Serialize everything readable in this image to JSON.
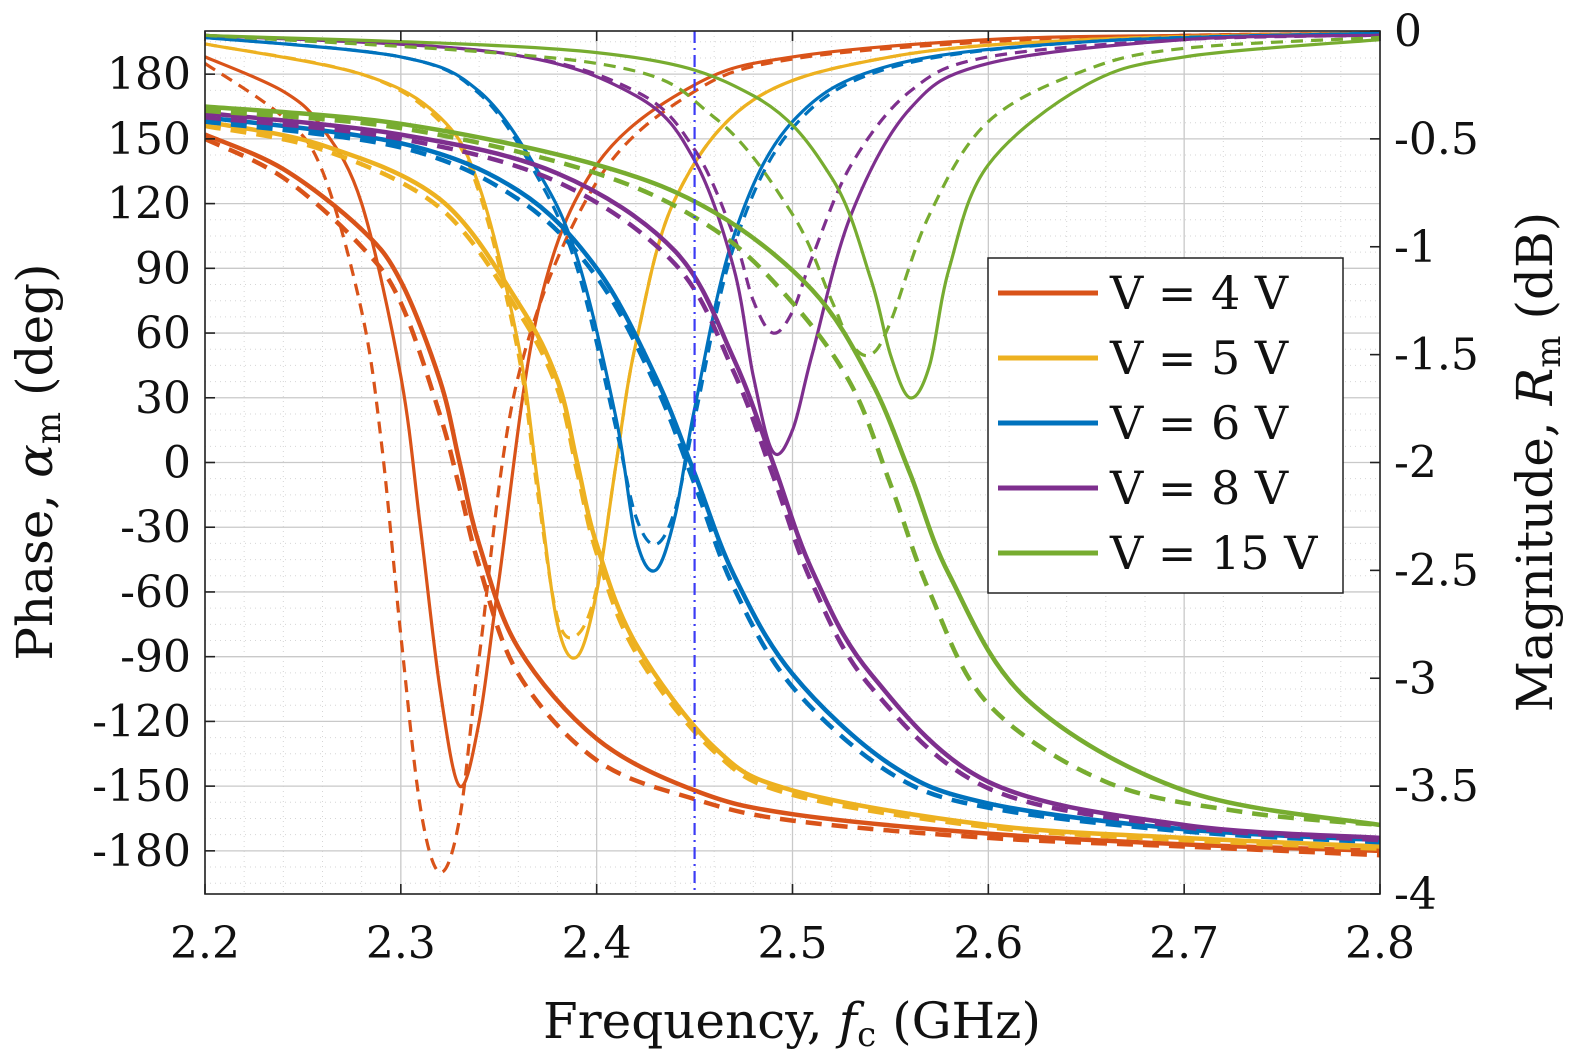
{
  "chart_data": {
    "type": "line",
    "xlabel": "Frequency, f_c (GHz)",
    "xlabel_parts": {
      "pre": "Frequency,",
      "sym": "f",
      "sub": "c",
      "post": "(GHz)"
    },
    "ylabel_left": "Phase, α_m (deg)",
    "ylabel_left_parts": {
      "pre": "Phase,",
      "sym": "α",
      "sub": "m",
      "post": "(deg)"
    },
    "ylabel_right": "Magnitude, R_m (dB)",
    "ylabel_right_parts": {
      "pre": "Magnitude,",
      "sym": "R",
      "sub": "m",
      "post": "(dB)"
    },
    "xlim": [
      2.2,
      2.8
    ],
    "ylim_left": [
      -200,
      200
    ],
    "ylim_right": [
      -4,
      0
    ],
    "xticks": [
      "2.2",
      "2.3",
      "2.4",
      "2.5",
      "2.6",
      "2.7",
      "2.8"
    ],
    "yticks_left": [
      "180",
      "150",
      "120",
      "90",
      "60",
      "30",
      "0",
      "-30",
      "-60",
      "-90",
      "-120",
      "-150",
      "-180"
    ],
    "yticks_right": [
      "0",
      "-0.5",
      "-1",
      "-1.5",
      "-2",
      "-2.5",
      "-3",
      "-3.5",
      "-4"
    ],
    "grid": true,
    "legend_position": "right",
    "marker_line": {
      "x": 2.45,
      "color": "#3b3bf5",
      "style": "dash-dot"
    },
    "series": [
      {
        "name": "V = 4 V",
        "color": "#d95319",
        "f0": 2.33,
        "phase": {
          "x": [
            2.2,
            2.24,
            2.28,
            2.3,
            2.32,
            2.33,
            2.34,
            2.36,
            2.4,
            2.45,
            2.5,
            2.6,
            2.7,
            2.8
          ],
          "y": [
            152,
            136,
            108,
            84,
            38,
            0,
            -38,
            -86,
            -128,
            -152,
            -163,
            -172,
            -177,
            -180
          ]
        },
        "phase_model": {
          "x": [
            2.2,
            2.24,
            2.28,
            2.3,
            2.32,
            2.33,
            2.34,
            2.36,
            2.4,
            2.45,
            2.5,
            2.6,
            2.7,
            2.8
          ],
          "y": [
            150,
            132,
            100,
            74,
            22,
            -12,
            -48,
            -98,
            -138,
            -156,
            -166,
            -174,
            -178,
            -182
          ]
        },
        "mag": {
          "x": [
            2.2,
            2.24,
            2.26,
            2.28,
            2.3,
            2.31,
            2.32,
            2.33,
            2.34,
            2.35,
            2.37,
            2.4,
            2.45,
            2.5,
            2.6,
            2.7,
            2.8
          ],
          "y": [
            -0.12,
            -0.28,
            -0.45,
            -0.8,
            -1.6,
            -2.3,
            -3.05,
            -3.5,
            -3.2,
            -2.55,
            -1.3,
            -0.62,
            -0.25,
            -0.12,
            -0.04,
            -0.02,
            -0.01
          ]
        },
        "mag_model": {
          "x": [
            2.2,
            2.24,
            2.26,
            2.28,
            2.29,
            2.3,
            2.31,
            2.32,
            2.33,
            2.34,
            2.36,
            2.4,
            2.45,
            2.5,
            2.6,
            2.7,
            2.8
          ],
          "y": [
            -0.15,
            -0.4,
            -0.65,
            -1.3,
            -1.9,
            -2.8,
            -3.6,
            -3.9,
            -3.65,
            -2.9,
            -1.6,
            -0.7,
            -0.28,
            -0.13,
            -0.05,
            -0.02,
            -0.01
          ]
        }
      },
      {
        "name": "V = 5 V",
        "color": "#edb120",
        "f0": 2.39,
        "phase": {
          "x": [
            2.2,
            2.26,
            2.32,
            2.36,
            2.38,
            2.39,
            2.4,
            2.42,
            2.46,
            2.5,
            2.6,
            2.7,
            2.8
          ],
          "y": [
            158,
            147,
            122,
            74,
            38,
            0,
            -38,
            -84,
            -132,
            -152,
            -168,
            -174,
            -178
          ]
        },
        "phase_model": {
          "x": [
            2.2,
            2.26,
            2.32,
            2.36,
            2.38,
            2.39,
            2.4,
            2.42,
            2.46,
            2.5,
            2.6,
            2.7,
            2.8
          ],
          "y": [
            156,
            145,
            118,
            70,
            34,
            -4,
            -42,
            -88,
            -134,
            -154,
            -169,
            -175,
            -179
          ]
        },
        "mag": {
          "x": [
            2.2,
            2.28,
            2.32,
            2.34,
            2.36,
            2.37,
            2.38,
            2.39,
            2.4,
            2.41,
            2.42,
            2.44,
            2.48,
            2.55,
            2.65,
            2.8
          ],
          "y": [
            -0.06,
            -0.2,
            -0.4,
            -0.72,
            -1.45,
            -2.1,
            -2.75,
            -2.9,
            -2.6,
            -2.0,
            -1.45,
            -0.78,
            -0.32,
            -0.12,
            -0.04,
            -0.01
          ]
        },
        "mag_model": {
          "x": [
            2.2,
            2.28,
            2.32,
            2.34,
            2.36,
            2.37,
            2.38,
            2.39,
            2.4,
            2.41,
            2.42,
            2.44,
            2.48,
            2.55,
            2.65,
            2.8
          ],
          "y": [
            -0.06,
            -0.2,
            -0.42,
            -0.75,
            -1.5,
            -2.15,
            -2.72,
            -2.8,
            -2.58,
            -2.0,
            -1.45,
            -0.78,
            -0.32,
            -0.12,
            -0.04,
            -0.01
          ]
        }
      },
      {
        "name": "V = 6 V",
        "color": "#0072bd",
        "f0": 2.45,
        "phase": {
          "x": [
            2.2,
            2.3,
            2.36,
            2.4,
            2.43,
            2.45,
            2.47,
            2.5,
            2.55,
            2.6,
            2.7,
            2.8
          ],
          "y": [
            160,
            148,
            126,
            90,
            40,
            -5,
            -52,
            -98,
            -140,
            -158,
            -170,
            -175
          ]
        },
        "phase_model": {
          "x": [
            2.2,
            2.3,
            2.36,
            2.4,
            2.43,
            2.45,
            2.47,
            2.5,
            2.55,
            2.6,
            2.7,
            2.8
          ],
          "y": [
            158,
            146,
            122,
            86,
            36,
            -10,
            -58,
            -104,
            -144,
            -160,
            -171,
            -176
          ]
        },
        "mag": {
          "x": [
            2.2,
            2.3,
            2.34,
            2.37,
            2.39,
            2.41,
            2.42,
            2.43,
            2.44,
            2.45,
            2.47,
            2.5,
            2.55,
            2.65,
            2.8
          ],
          "y": [
            -0.03,
            -0.12,
            -0.28,
            -0.65,
            -1.05,
            -1.8,
            -2.35,
            -2.5,
            -2.25,
            -1.75,
            -0.95,
            -0.42,
            -0.16,
            -0.05,
            -0.01
          ]
        },
        "mag_model": {
          "x": [
            2.2,
            2.3,
            2.34,
            2.37,
            2.39,
            2.41,
            2.42,
            2.43,
            2.44,
            2.45,
            2.47,
            2.5,
            2.55,
            2.65,
            2.8
          ],
          "y": [
            -0.03,
            -0.12,
            -0.29,
            -0.68,
            -1.1,
            -1.85,
            -2.25,
            -2.38,
            -2.22,
            -1.8,
            -1.0,
            -0.45,
            -0.17,
            -0.05,
            -0.01
          ]
        }
      },
      {
        "name": "V = 8 V",
        "color": "#7e2f8e",
        "f0": 2.49,
        "phase": {
          "x": [
            2.2,
            2.3,
            2.38,
            2.44,
            2.47,
            2.49,
            2.51,
            2.54,
            2.6,
            2.7,
            2.8
          ],
          "y": [
            162,
            152,
            134,
            98,
            48,
            0,
            -50,
            -98,
            -148,
            -168,
            -174
          ]
        },
        "phase_model": {
          "x": [
            2.2,
            2.3,
            2.38,
            2.44,
            2.47,
            2.49,
            2.51,
            2.54,
            2.6,
            2.7,
            2.8
          ],
          "y": [
            160,
            150,
            130,
            92,
            42,
            -6,
            -56,
            -104,
            -151,
            -169,
            -175
          ]
        },
        "mag": {
          "x": [
            2.2,
            2.35,
            2.42,
            2.45,
            2.47,
            2.48,
            2.49,
            2.5,
            2.51,
            2.53,
            2.56,
            2.6,
            2.7,
            2.8
          ],
          "y": [
            -0.02,
            -0.1,
            -0.3,
            -0.6,
            -1.1,
            -1.6,
            -1.95,
            -1.85,
            -1.5,
            -0.85,
            -0.36,
            -0.15,
            -0.04,
            -0.02
          ]
        },
        "mag_model": {
          "x": [
            2.2,
            2.35,
            2.42,
            2.45,
            2.47,
            2.48,
            2.49,
            2.5,
            2.51,
            2.53,
            2.56,
            2.6,
            2.7,
            2.8
          ],
          "y": [
            -0.02,
            -0.1,
            -0.28,
            -0.55,
            -0.95,
            -1.25,
            -1.4,
            -1.3,
            -1.05,
            -0.62,
            -0.28,
            -0.12,
            -0.04,
            -0.02
          ]
        }
      },
      {
        "name": "V = 15 V",
        "color": "#77ac30",
        "f0": 2.55,
        "phase": {
          "x": [
            2.2,
            2.3,
            2.4,
            2.46,
            2.51,
            2.54,
            2.56,
            2.58,
            2.62,
            2.7,
            2.8
          ],
          "y": [
            165,
            157,
            138,
            116,
            80,
            38,
            -5,
            -52,
            -110,
            -152,
            -168
          ]
        },
        "phase_model": {
          "x": [
            2.2,
            2.3,
            2.4,
            2.46,
            2.5,
            2.53,
            2.55,
            2.57,
            2.6,
            2.66,
            2.73,
            2.8
          ],
          "y": [
            163,
            155,
            134,
            108,
            74,
            36,
            -10,
            -60,
            -112,
            -148,
            -162,
            -168
          ]
        },
        "mag": {
          "x": [
            2.2,
            2.4,
            2.48,
            2.52,
            2.54,
            2.55,
            2.56,
            2.57,
            2.58,
            2.6,
            2.65,
            2.7,
            2.8
          ],
          "y": [
            -0.02,
            -0.1,
            -0.3,
            -0.68,
            -1.15,
            -1.5,
            -1.7,
            -1.55,
            -1.1,
            -0.62,
            -0.25,
            -0.12,
            -0.04
          ]
        },
        "mag_model": {
          "x": [
            2.2,
            2.4,
            2.46,
            2.5,
            2.52,
            2.53,
            2.54,
            2.55,
            2.57,
            2.6,
            2.65,
            2.7,
            2.8
          ],
          "y": [
            -0.02,
            -0.15,
            -0.4,
            -0.85,
            -1.25,
            -1.45,
            -1.5,
            -1.35,
            -0.85,
            -0.42,
            -0.18,
            -0.08,
            -0.03
          ]
        }
      }
    ]
  }
}
